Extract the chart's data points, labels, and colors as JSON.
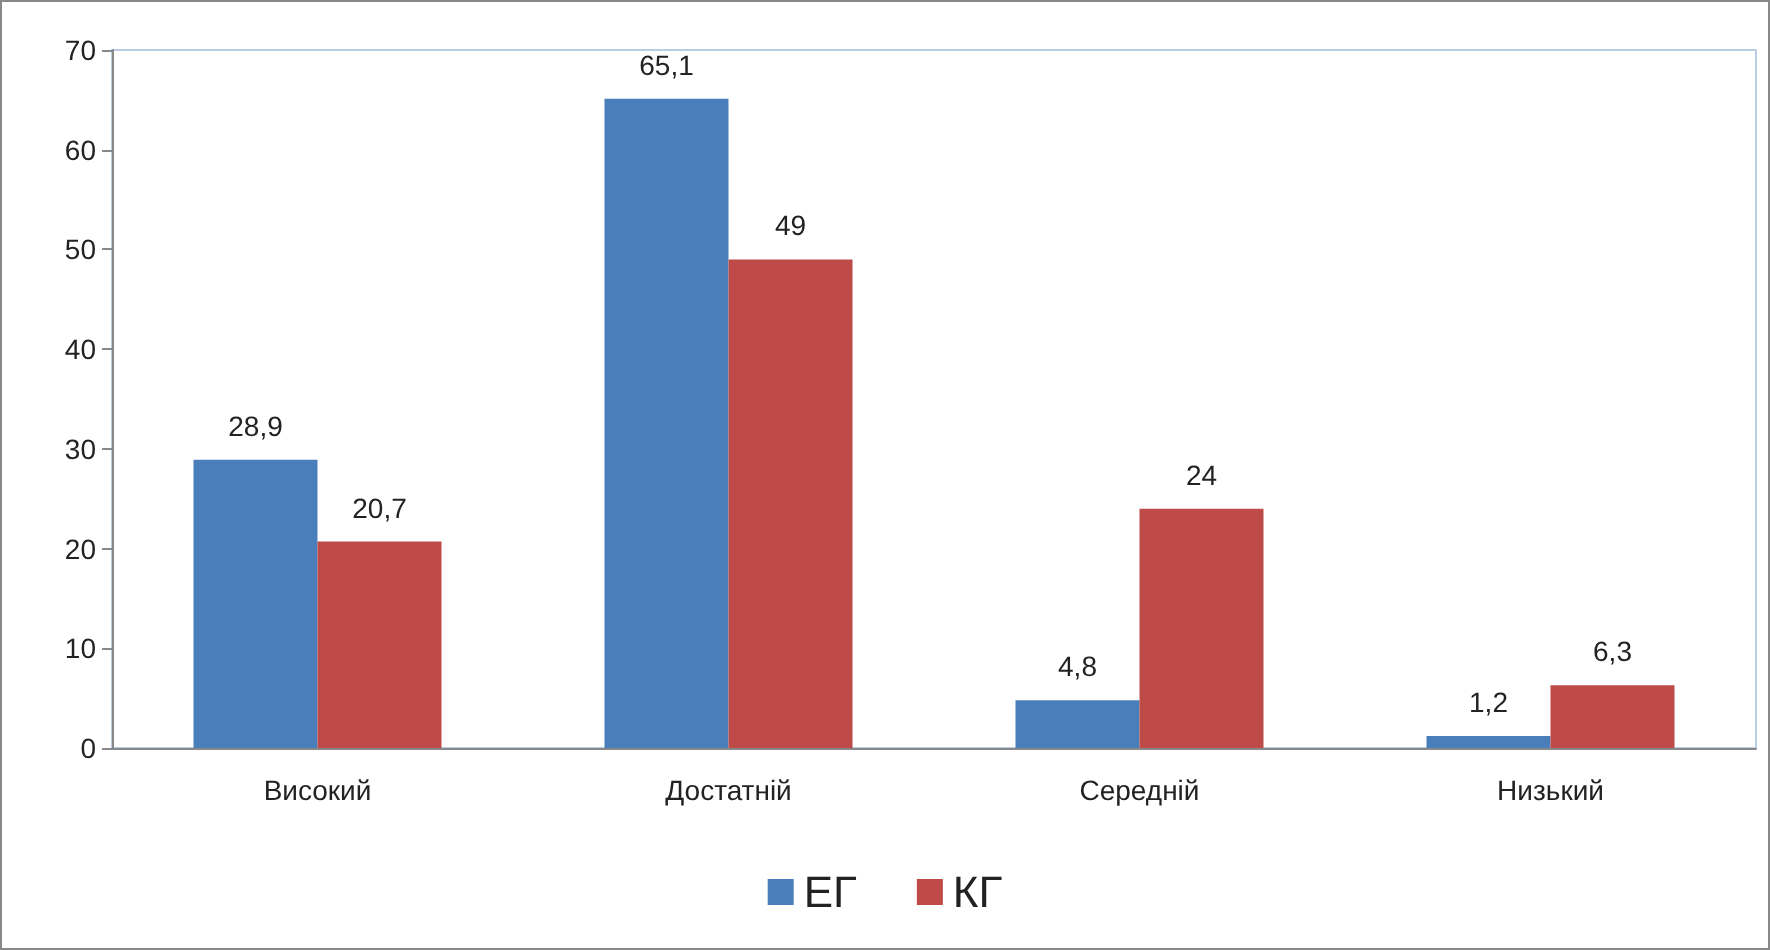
{
  "chart_data": {
    "type": "bar",
    "categories": [
      "Високий",
      "Достатній",
      "Середній",
      "Низький"
    ],
    "series": [
      {
        "name": "ЕГ",
        "color": "#4a7ebb",
        "values": [
          28.9,
          65.1,
          4.8,
          1.2
        ],
        "value_labels": [
          "28,9",
          "65,1",
          "4,8",
          "1,2"
        ]
      },
      {
        "name": "КГ",
        "color": "#be4b48",
        "values": [
          20.7,
          49,
          24,
          6.3
        ],
        "value_labels": [
          "20,7",
          "49",
          "24",
          "6,3"
        ]
      }
    ],
    "ylim": [
      0,
      70
    ],
    "yticks": [
      0,
      10,
      20,
      30,
      40,
      50,
      60,
      70
    ],
    "grid": false,
    "legend": "bottom"
  }
}
